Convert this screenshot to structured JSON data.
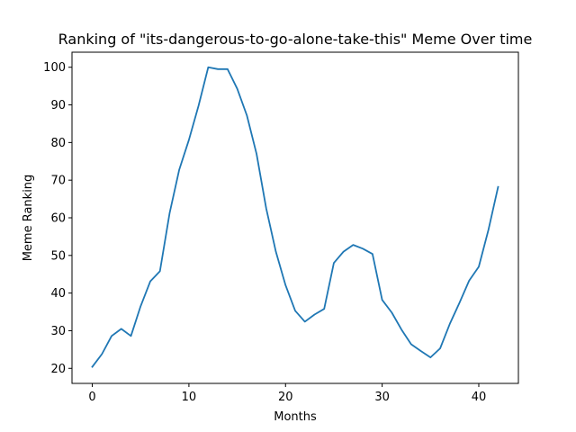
{
  "chart_data": {
    "type": "line",
    "title": "Ranking of \"its-dangerous-to-go-alone-take-this\" Meme Over time",
    "xlabel": "Months",
    "ylabel": "Meme Ranking",
    "xlim": [
      -2.1,
      44.1
    ],
    "ylim": [
      16.0,
      104.0
    ],
    "xticks": [
      0,
      10,
      20,
      30,
      40
    ],
    "yticks": [
      20,
      30,
      40,
      50,
      60,
      70,
      80,
      90,
      100
    ],
    "grid": false,
    "line_color": "#1f77b4",
    "series": [
      {
        "x": [
          0,
          1,
          2,
          3,
          4,
          5,
          6,
          7,
          8,
          9,
          10,
          11,
          12,
          13,
          14,
          15,
          16,
          17,
          18,
          19,
          20,
          21,
          22,
          23,
          24,
          25,
          26,
          27,
          28,
          29,
          30,
          31,
          32,
          33,
          34,
          35,
          36,
          37,
          38,
          39,
          40,
          41,
          42
        ],
        "values": [
          20.4,
          23.8,
          28.6,
          30.5,
          28.6,
          36.5,
          43.1,
          45.8,
          61.2,
          72.8,
          80.7,
          89.8,
          100.0,
          99.5,
          99.5,
          94.3,
          87.2,
          77.0,
          62.5,
          51.0,
          42.1,
          35.3,
          32.4,
          34.3,
          35.8,
          48.0,
          51.0,
          52.8,
          51.8,
          50.4,
          38.2,
          34.8,
          30.3,
          26.4,
          24.6,
          22.9,
          25.3,
          31.8,
          37.4,
          43.3,
          47.0,
          56.8,
          68.2
        ]
      }
    ]
  }
}
